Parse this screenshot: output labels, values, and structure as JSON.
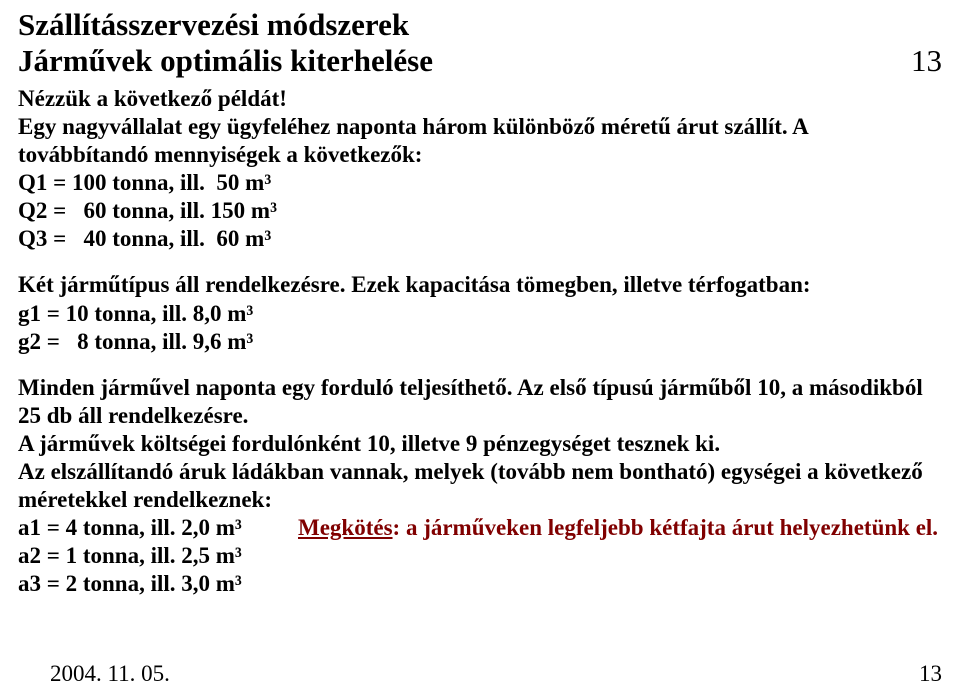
{
  "header": {
    "title": "Szállításszervezési módszerek",
    "subtitle": "Járművek optimális kiterhelése",
    "page_top": "13"
  },
  "intro": {
    "l1": "Nézzük a következő példát!",
    "l2": "Egy nagyvállalat egy ügyfeléhez naponta három különböző méretű árut szállít. A továbbítandó mennyiségek a következők:",
    "q1": "Q1 = 100 tonna, ill.  50 m³",
    "q2": "Q2 =   60 tonna, ill. 150 m³",
    "q3": "Q3 =   40 tonna, ill.  60 m³"
  },
  "vehicles": {
    "l1": "Két járműtípus áll rendelkezésre. Ezek kapacitása tömegben, illetve térfogatban:",
    "g1": "g1 = 10 tonna, ill. 8,0 m³",
    "g2": "g2 =   8 tonna, ill. 9,6 m³"
  },
  "para2": {
    "t1": "Minden járművel naponta egy forduló teljesíthető. Az első típusú járműből 10, a másodikból 25 db áll rendelkezésre.",
    "t2": "A járművek költségei fordulónként 10, illetve 9 pénzegységet tesznek ki.",
    "t3": "Az elszállítandó áruk ládákban vannak, melyek (tovább nem bontható) egységei a következő méretekkel rendelkeznek:"
  },
  "boxes": {
    "a1": "a1 = 4 tonna, ill. 2,0 m³",
    "a2": "a2 = 1 tonna, ill. 2,5 m³",
    "a3": "a3 = 2 tonna, ill. 3,0 m³"
  },
  "constraint": {
    "label": "Megkötés",
    "rest": ": a járműveken legfeljebb kétfajta árut helyezhetünk el."
  },
  "footer": {
    "date": "2004. 11. 05.",
    "page": "13"
  }
}
